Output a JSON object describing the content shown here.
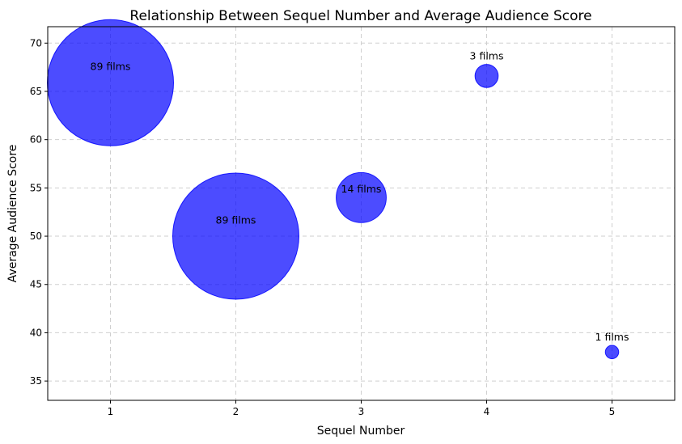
{
  "chart_data": {
    "type": "scatter",
    "title": "Relationship Between Sequel Number and Average Audience Score",
    "xlabel": "Sequel Number",
    "ylabel": "Average Audience Score",
    "xlim": [
      0.5,
      5.5
    ],
    "ylim": [
      33,
      71.7
    ],
    "xticks": [
      1,
      2,
      3,
      4,
      5
    ],
    "yticks": [
      35,
      40,
      45,
      50,
      55,
      60,
      65,
      70
    ],
    "grid": true,
    "marker_color": "#0000ff",
    "marker_alpha": 0.7,
    "points": [
      {
        "x": 1,
        "y": 65.9,
        "count": 89,
        "label": "89 films"
      },
      {
        "x": 2,
        "y": 50.0,
        "count": 89,
        "label": "89 films"
      },
      {
        "x": 3,
        "y": 54.0,
        "count": 14,
        "label": "14 films"
      },
      {
        "x": 4,
        "y": 66.6,
        "count": 3,
        "label": "3 films"
      },
      {
        "x": 5,
        "y": 38.0,
        "count": 1,
        "label": "1 films"
      }
    ]
  }
}
